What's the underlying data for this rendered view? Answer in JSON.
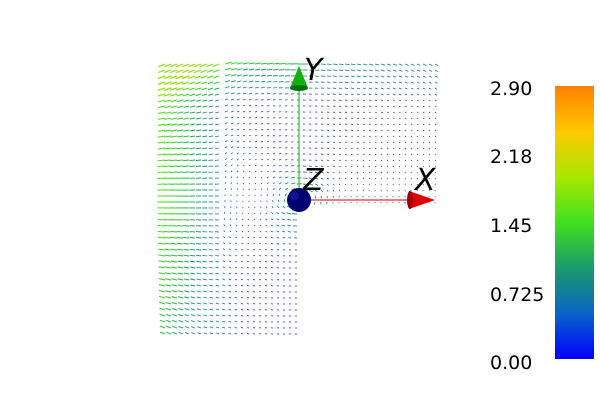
{
  "scene": {
    "background": "#ffffff",
    "field_type": "vector-glyph-field",
    "domain_shape": "L-shaped",
    "glyph_colormap": [
      "#0000ff",
      "#1060c0",
      "#16a060",
      "#40e020",
      "#b0e000",
      "#ffd000",
      "#ff8000"
    ]
  },
  "axes_triad": {
    "x": {
      "label": "X",
      "color": "#e00000"
    },
    "y": {
      "label": "Y",
      "color": "#00c000"
    },
    "z": {
      "label": "Z",
      "color": "#000080"
    }
  },
  "color_legend": {
    "tick_labels": [
      "2.90",
      "2.18",
      "1.45",
      "0.725",
      "0.00"
    ],
    "range": [
      0.0,
      2.9
    ],
    "gradient": [
      "#0000ff",
      "#0a64c8",
      "#1a9a6a",
      "#40e020",
      "#a8e800",
      "#ffc800",
      "#ff8000"
    ]
  }
}
